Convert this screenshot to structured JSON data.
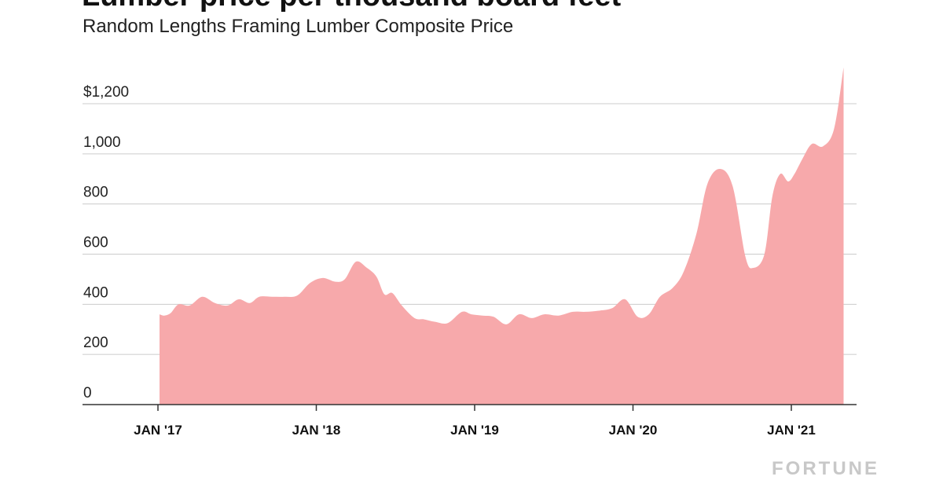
{
  "title": "Lumber price per thousand board feet",
  "subtitle": "Random Lengths Framing Lumber Composite Price",
  "brand": "FORTUNE",
  "colors": {
    "area": "#f7a9ab",
    "grid": "#cccccc",
    "axis": "#333333"
  },
  "chart_data": {
    "type": "area",
    "title": "Lumber price per thousand board feet",
    "subtitle": "Random Lengths Framing Lumber Composite Price",
    "xlabel": "",
    "ylabel": "",
    "ylim": [
      0,
      1200
    ],
    "y_ticks": [
      {
        "value": 0,
        "label": "0"
      },
      {
        "value": 200,
        "label": "200"
      },
      {
        "value": 400,
        "label": "400"
      },
      {
        "value": 600,
        "label": "600"
      },
      {
        "value": 800,
        "label": "800"
      },
      {
        "value": 1000,
        "label": "1,000"
      },
      {
        "value": 1200,
        "label": "$1,200"
      }
    ],
    "x_ticks": [
      {
        "value": 2017.0,
        "label": "JAN '17"
      },
      {
        "value": 2018.0,
        "label": "JAN '18"
      },
      {
        "value": 2019.0,
        "label": "JAN '19"
      },
      {
        "value": 2020.0,
        "label": "JAN '20"
      },
      {
        "value": 2021.0,
        "label": "JAN '21"
      }
    ],
    "grid": true,
    "series": [
      {
        "x": [
          2017.01,
          2017.04,
          2017.08,
          2017.13,
          2017.2,
          2017.28,
          2017.36,
          2017.44,
          2017.51,
          2017.58,
          2017.64,
          2017.72,
          2017.8,
          2017.88,
          2017.96,
          2018.04,
          2018.12,
          2018.18,
          2018.25,
          2018.32,
          2018.38,
          2018.43,
          2018.48,
          2018.54,
          2018.62,
          2018.68,
          2018.75,
          2018.83,
          2018.92,
          2018.98,
          2019.05,
          2019.12,
          2019.2,
          2019.28,
          2019.36,
          2019.44,
          2019.53,
          2019.62,
          2019.7,
          2019.79,
          2019.87,
          2019.95,
          2020.03,
          2020.1,
          2020.17,
          2020.25,
          2020.32,
          2020.4,
          2020.47,
          2020.55,
          2020.63,
          2020.71,
          2020.76,
          2020.83,
          2020.88,
          2020.93,
          2020.98,
          2021.02,
          2021.07,
          2021.13,
          2021.2,
          2021.27,
          2021.33
        ],
        "y": [
          360,
          355,
          365,
          400,
          395,
          430,
          405,
          395,
          420,
          405,
          430,
          430,
          430,
          435,
          485,
          505,
          490,
          500,
          570,
          545,
          510,
          440,
          445,
          395,
          345,
          340,
          330,
          325,
          370,
          360,
          355,
          350,
          320,
          360,
          345,
          360,
          355,
          370,
          370,
          375,
          385,
          420,
          350,
          360,
          430,
          465,
          530,
          680,
          880,
          940,
          870,
          590,
          545,
          600,
          830,
          920,
          890,
          920,
          980,
          1040,
          1030,
          1100,
          1345
        ]
      }
    ]
  }
}
